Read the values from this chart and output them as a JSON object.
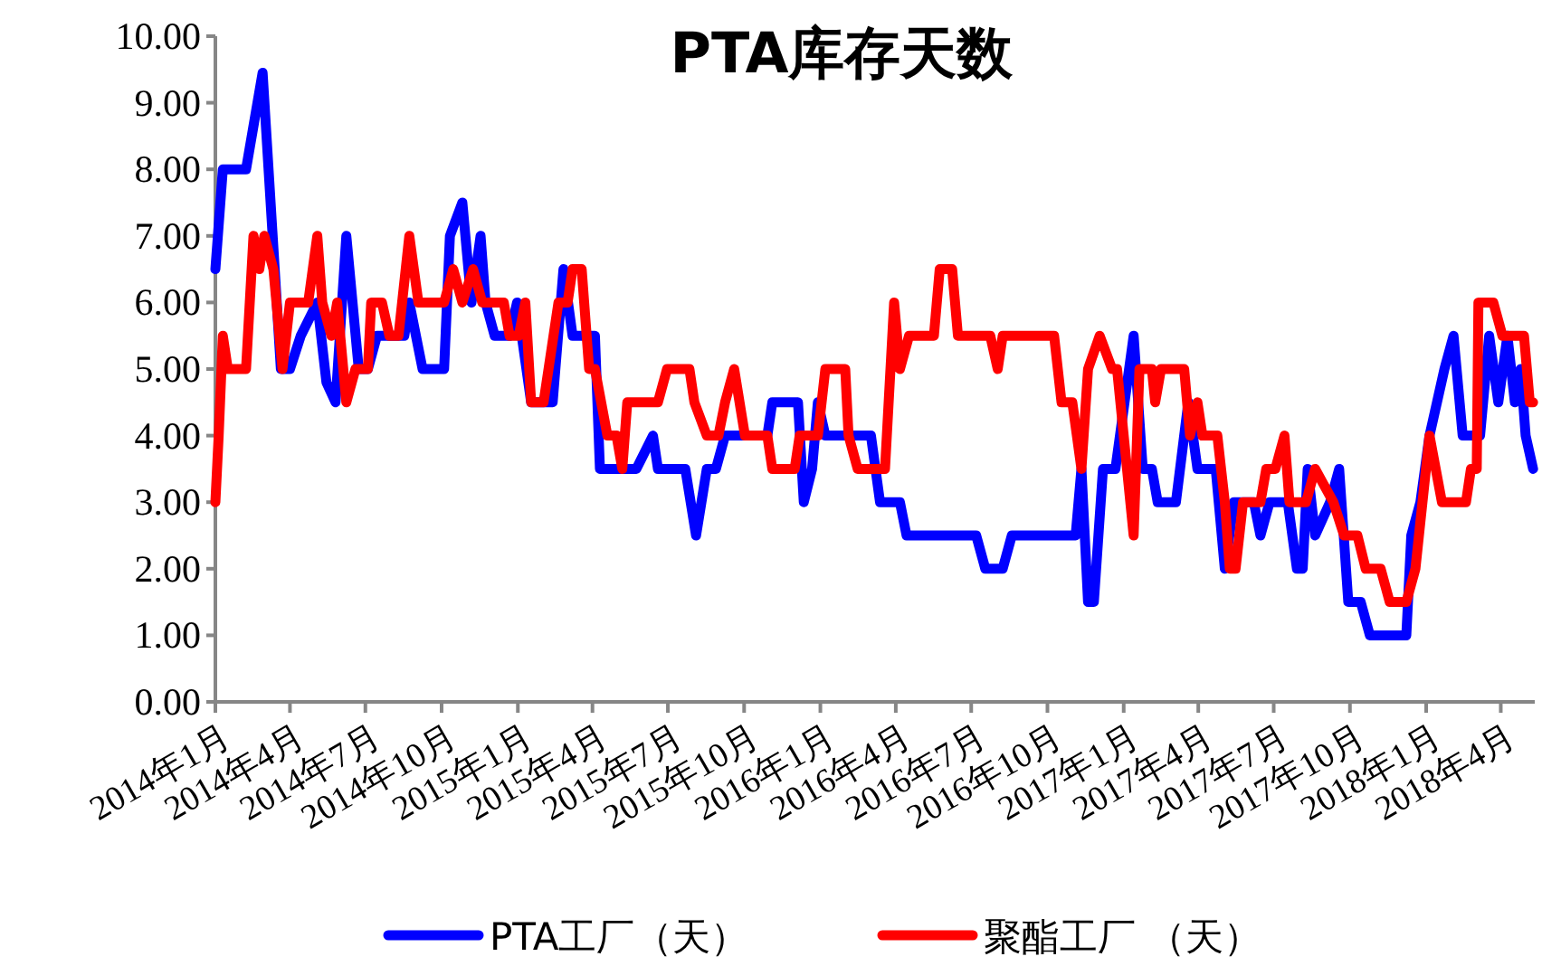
{
  "chart_data": {
    "type": "line",
    "title": "PTA库存天数",
    "legend": "bottom",
    "xlim": [
      "2014-01-01",
      "2018-05-12"
    ],
    "xticks": [
      {
        "value": "2014-01",
        "label": "2014年1月"
      },
      {
        "value": "2014-04",
        "label": "2014年4月"
      },
      {
        "value": "2014-07",
        "label": "2014年7月"
      },
      {
        "value": "2014-10",
        "label": "2014年10月"
      },
      {
        "value": "2015-01",
        "label": "2015年1月"
      },
      {
        "value": "2015-04",
        "label": "2015年4月"
      },
      {
        "value": "2015-07",
        "label": "2015年7月"
      },
      {
        "value": "2015-10",
        "label": "2015年10月"
      },
      {
        "value": "2016-01",
        "label": "2016年1月"
      },
      {
        "value": "2016-04",
        "label": "2016年4月"
      },
      {
        "value": "2016-07",
        "label": "2016年7月"
      },
      {
        "value": "2016-10",
        "label": "2016年10月"
      },
      {
        "value": "2017-01",
        "label": "2017年1月"
      },
      {
        "value": "2017-04",
        "label": "2017年4月"
      },
      {
        "value": "2017-07",
        "label": "2017年7月"
      },
      {
        "value": "2017-10",
        "label": "2017年10月"
      },
      {
        "value": "2018-01",
        "label": "2018年1月"
      },
      {
        "value": "2018-04",
        "label": "2018年4月"
      }
    ],
    "ylim": [
      0,
      10
    ],
    "yticks": [
      {
        "value": 0,
        "label": "0.00"
      },
      {
        "value": 1,
        "label": "1.00"
      },
      {
        "value": 2,
        "label": "2.00"
      },
      {
        "value": 3,
        "label": "3.00"
      },
      {
        "value": 4,
        "label": "4.00"
      },
      {
        "value": 5,
        "label": "5.00"
      },
      {
        "value": 6,
        "label": "6.00"
      },
      {
        "value": 7,
        "label": "7.00"
      },
      {
        "value": 8,
        "label": "8.00"
      },
      {
        "value": 9,
        "label": "9.00"
      },
      {
        "value": 10,
        "label": "10.00"
      }
    ],
    "series": [
      {
        "name": "PTA工厂（天）",
        "color": "#0000ff",
        "x": [
          "2014-01-01",
          "2014-01-10",
          "2014-02-07",
          "2014-02-27",
          "2014-03-21",
          "2014-04-01",
          "2014-04-14",
          "2014-05-04",
          "2014-05-15",
          "2014-05-26",
          "2014-06-08",
          "2014-06-23",
          "2014-07-04",
          "2014-07-15",
          "2014-08-17",
          "2014-08-23",
          "2014-09-08",
          "2014-10-04",
          "2014-10-11",
          "2014-10-26",
          "2014-11-06",
          "2014-11-17",
          "2014-11-23",
          "2014-12-04",
          "2014-12-22",
          "2014-12-31",
          "2015-01-17",
          "2015-02-12",
          "2015-02-25",
          "2015-03-08",
          "2015-04-04",
          "2015-04-10",
          "2015-05-24",
          "2015-06-13",
          "2015-06-19",
          "2015-07-22",
          "2015-08-04",
          "2015-08-17",
          "2015-08-28",
          "2015-09-08",
          "2015-10-29",
          "2015-11-04",
          "2015-12-05",
          "2015-12-12",
          "2015-12-22",
          "2015-12-29",
          "2016-01-07",
          "2016-03-02",
          "2016-03-13",
          "2016-04-06",
          "2016-04-14",
          "2016-07-07",
          "2016-07-18",
          "2016-08-08",
          "2016-08-19",
          "2016-11-04",
          "2016-11-11",
          "2016-11-19",
          "2016-11-26",
          "2016-12-07",
          "2016-12-22",
          "2017-01-13",
          "2017-01-24",
          "2017-02-04",
          "2017-02-11",
          "2017-03-05",
          "2017-03-20",
          "2017-03-31",
          "2017-04-22",
          "2017-05-03",
          "2017-05-14",
          "2017-06-07",
          "2017-06-15",
          "2017-06-26",
          "2017-07-18",
          "2017-07-29",
          "2017-08-05",
          "2017-08-11",
          "2017-08-20",
          "2017-09-07",
          "2017-09-18",
          "2017-09-29",
          "2017-10-14",
          "2017-10-25",
          "2017-12-08",
          "2017-12-14",
          "2017-12-25",
          "2018-01-05",
          "2018-01-23",
          "2018-02-03",
          "2018-02-14",
          "2018-03-07",
          "2018-03-18",
          "2018-03-29",
          "2018-04-09",
          "2018-04-18",
          "2018-04-25",
          "2018-05-01",
          "2018-05-10"
        ],
        "values": [
          6.5,
          8.0,
          8.0,
          9.45,
          5.0,
          5.0,
          5.5,
          6.0,
          4.8,
          4.5,
          7.0,
          5.0,
          5.0,
          5.5,
          5.5,
          6.0,
          5.0,
          5.0,
          7.0,
          7.5,
          6.0,
          7.0,
          6.0,
          5.5,
          5.5,
          6.0,
          4.5,
          4.5,
          6.5,
          5.5,
          5.5,
          3.5,
          3.5,
          4.0,
          3.5,
          3.5,
          2.5,
          3.5,
          3.5,
          4.0,
          4.0,
          4.5,
          4.5,
          3.0,
          3.5,
          4.5,
          4.0,
          4.0,
          3.0,
          3.0,
          2.5,
          2.5,
          2.0,
          2.0,
          2.5,
          2.5,
          3.5,
          1.5,
          1.5,
          3.5,
          3.5,
          5.5,
          3.5,
          3.5,
          3.0,
          3.0,
          4.5,
          3.5,
          3.5,
          2.0,
          3.0,
          3.0,
          2.5,
          3.0,
          3.0,
          2.0,
          2.0,
          3.5,
          2.5,
          3.0,
          3.5,
          1.5,
          1.5,
          1.0,
          1.0,
          2.5,
          3.0,
          4.0,
          5.0,
          5.5,
          4.0,
          4.0,
          5.5,
          4.5,
          5.5,
          4.5,
          5.0,
          4.0,
          3.5
        ]
      },
      {
        "name": "聚酯工厂 （天）",
        "color": "#ff0000",
        "x": [
          "2014-01-01",
          "2014-01-05",
          "2014-01-10",
          "2014-01-16",
          "2014-02-07",
          "2014-02-16",
          "2014-02-23",
          "2014-03-01",
          "2014-03-12",
          "2014-03-23",
          "2014-04-01",
          "2014-04-23",
          "2014-05-04",
          "2014-05-10",
          "2014-05-21",
          "2014-05-28",
          "2014-06-08",
          "2014-06-19",
          "2014-07-04",
          "2014-07-08",
          "2014-07-21",
          "2014-07-30",
          "2014-08-10",
          "2014-08-23",
          "2014-09-03",
          "2014-10-04",
          "2014-10-15",
          "2014-10-26",
          "2014-11-08",
          "2014-11-19",
          "2014-12-15",
          "2014-12-22",
          "2015-01-02",
          "2015-01-10",
          "2015-01-17",
          "2015-02-01",
          "2015-02-19",
          "2015-03-02",
          "2015-03-08",
          "2015-03-19",
          "2015-03-28",
          "2015-04-04",
          "2015-04-19",
          "2015-04-30",
          "2015-05-07",
          "2015-05-13",
          "2015-06-19",
          "2015-06-30",
          "2015-07-27",
          "2015-08-02",
          "2015-08-17",
          "2015-08-31",
          "2015-09-08",
          "2015-09-19",
          "2015-10-02",
          "2015-10-29",
          "2015-11-04",
          "2015-12-01",
          "2015-12-07",
          "2015-12-29",
          "2016-01-07",
          "2016-01-31",
          "2016-02-04",
          "2016-02-15",
          "2016-03-19",
          "2016-03-30",
          "2016-04-06",
          "2016-04-17",
          "2016-05-17",
          "2016-05-24",
          "2016-06-08",
          "2016-06-15",
          "2016-07-24",
          "2016-08-02",
          "2016-08-08",
          "2016-10-09",
          "2016-10-18",
          "2016-10-31",
          "2016-11-11",
          "2016-11-19",
          "2016-12-03",
          "2016-12-18",
          "2016-12-24",
          "2017-01-13",
          "2017-01-20",
          "2017-02-04",
          "2017-02-08",
          "2017-02-15",
          "2017-03-15",
          "2017-03-22",
          "2017-03-31",
          "2017-04-06",
          "2017-04-24",
          "2017-05-03",
          "2017-05-09",
          "2017-05-16",
          "2017-05-25",
          "2017-06-15",
          "2017-06-22",
          "2017-07-03",
          "2017-07-14",
          "2017-07-20",
          "2017-08-09",
          "2017-08-20",
          "2017-08-31",
          "2017-09-11",
          "2017-09-24",
          "2017-10-10",
          "2017-10-20",
          "2017-11-07",
          "2017-11-18",
          "2017-12-08",
          "2017-12-19",
          "2018-01-05",
          "2018-01-20",
          "2018-02-18",
          "2018-02-24",
          "2018-03-03",
          "2018-03-05",
          "2018-03-23",
          "2018-04-03",
          "2018-04-29",
          "2018-05-06",
          "2018-05-10"
        ],
        "values": [
          3.0,
          4.0,
          5.5,
          5.0,
          5.0,
          7.0,
          6.5,
          7.0,
          6.5,
          5.0,
          6.0,
          6.0,
          7.0,
          6.0,
          5.5,
          6.0,
          4.5,
          5.0,
          5.0,
          6.0,
          6.0,
          5.5,
          5.5,
          7.0,
          6.0,
          6.0,
          6.5,
          6.0,
          6.5,
          6.0,
          6.0,
          5.5,
          5.5,
          6.0,
          4.5,
          4.5,
          6.0,
          6.0,
          6.5,
          6.5,
          5.0,
          5.0,
          4.0,
          4.0,
          3.5,
          4.5,
          4.5,
          5.0,
          5.0,
          4.5,
          4.0,
          4.0,
          4.5,
          5.0,
          4.0,
          4.0,
          3.5,
          3.5,
          4.0,
          4.0,
          5.0,
          5.0,
          4.0,
          3.5,
          3.5,
          6.0,
          5.0,
          5.5,
          5.5,
          6.5,
          6.5,
          5.5,
          5.5,
          5.0,
          5.5,
          5.5,
          4.5,
          4.5,
          3.5,
          5.0,
          5.5,
          5.0,
          5.0,
          2.5,
          5.0,
          5.0,
          4.5,
          5.0,
          5.0,
          4.0,
          4.5,
          4.0,
          4.0,
          3.0,
          2.0,
          2.0,
          3.0,
          3.0,
          3.5,
          3.5,
          4.0,
          3.0,
          3.0,
          3.5,
          3.25,
          3.0,
          2.5,
          2.5,
          2.0,
          2.0,
          1.5,
          1.5,
          2.0,
          4.0,
          3.0,
          3.0,
          3.5,
          3.5,
          6.0,
          6.0,
          5.5,
          5.5,
          4.5,
          4.5
        ]
      }
    ]
  }
}
